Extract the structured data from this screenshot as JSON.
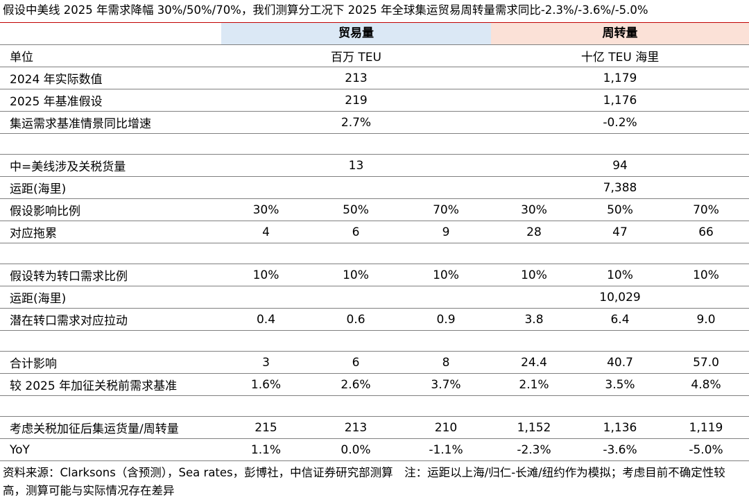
{
  "title": "假设中美线 2025 年需求降幅 30%/50%/70%，我们测算分工况下 2025 年全球集运贸易周转量需求同比-2.3%/-3.6%/-5.0%",
  "headers": {
    "trade": "贸易量",
    "turnover": "周转量"
  },
  "rows": [
    {
      "label": "单位",
      "trade": "百万 TEU",
      "turnover": "十亿 TEU 海里"
    },
    {
      "label": "2024 年实际数值",
      "trade": "213",
      "turnover": "1,179"
    },
    {
      "label": "2025 年基准假设",
      "trade": "219",
      "turnover": "1,176"
    },
    {
      "label": "集运需求基准情景同比增速",
      "trade": "2.7%",
      "turnover": "-0.2%"
    },
    {
      "label": "中=美线涉及关税货量",
      "trade": "13",
      "turnover": "94"
    },
    {
      "label": "运距(海里)",
      "turnover": "7,388"
    },
    {
      "label": "假设影响比例",
      "cells": [
        "30%",
        "50%",
        "70%",
        "30%",
        "50%",
        "70%"
      ]
    },
    {
      "label": "对应拖累",
      "cells": [
        "4",
        "6",
        "9",
        "28",
        "47",
        "66"
      ]
    },
    {
      "label": "假设转为转口需求比例",
      "cells": [
        "10%",
        "10%",
        "10%",
        "10%",
        "10%",
        "10%"
      ]
    },
    {
      "label": "运距(海里)",
      "turnover": "10,029"
    },
    {
      "label": "潜在转口需求对应拉动",
      "cells": [
        "0.4",
        "0.6",
        "0.9",
        "3.8",
        "6.4",
        "9.0"
      ]
    },
    {
      "label": "合计影响",
      "cells": [
        "3",
        "6",
        "8",
        "24.4",
        "40.7",
        "57.0"
      ]
    },
    {
      "label": "较 2025 年加征关税前需求基准",
      "cells": [
        "1.6%",
        "2.6%",
        "3.7%",
        "2.1%",
        "3.5%",
        "4.8%"
      ]
    },
    {
      "label": "考虑关税加征后集运货量/周转量",
      "cells": [
        "215",
        "213",
        "210",
        "1,152",
        "1,136",
        "1,119"
      ]
    },
    {
      "label": "YoY",
      "cells": [
        "1.1%",
        "0.0%",
        "-1.1%",
        "-2.3%",
        "-3.6%",
        "-5.0%"
      ]
    }
  ],
  "source": "资料来源：Clarksons（含预测），Sea rates，彭博社，中信证券研究部测算　注：运距以上海/归仁-长滩/纽约作为模拟；考虑目前不确定性较高，测算可能与实际情况存在差异"
}
